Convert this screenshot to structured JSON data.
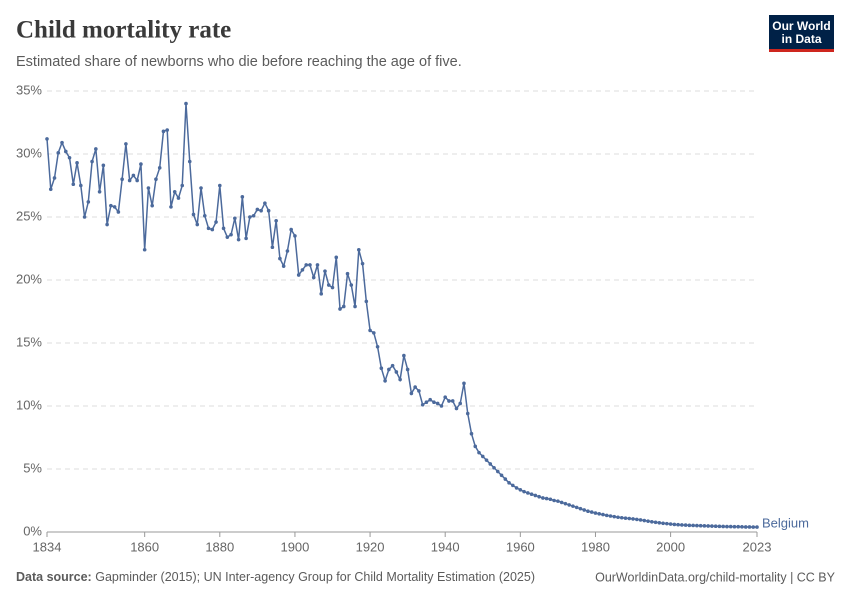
{
  "chart_data": {
    "type": "line",
    "title": "Child mortality rate",
    "subtitle": "Estimated share of newborns who die before reaching the age of five.",
    "logo": [
      "Our World",
      "in Data"
    ],
    "source_label": "Data source:",
    "source": "Gapminder (2015); UN Inter-agency Group for Child Mortality Estimation (2025)",
    "footer_right": "OurWorldinData.org/child-mortality | CC BY",
    "x": [
      1834,
      1835,
      1836,
      1837,
      1838,
      1839,
      1840,
      1841,
      1842,
      1843,
      1844,
      1845,
      1846,
      1847,
      1848,
      1849,
      1850,
      1851,
      1852,
      1853,
      1854,
      1855,
      1856,
      1857,
      1858,
      1859,
      1860,
      1861,
      1862,
      1863,
      1864,
      1865,
      1866,
      1867,
      1868,
      1869,
      1870,
      1871,
      1872,
      1873,
      1874,
      1875,
      1876,
      1877,
      1878,
      1879,
      1880,
      1881,
      1882,
      1883,
      1884,
      1885,
      1886,
      1887,
      1888,
      1889,
      1890,
      1891,
      1892,
      1893,
      1894,
      1895,
      1896,
      1897,
      1898,
      1899,
      1900,
      1901,
      1902,
      1903,
      1904,
      1905,
      1906,
      1907,
      1908,
      1909,
      1910,
      1911,
      1912,
      1913,
      1914,
      1915,
      1916,
      1917,
      1918,
      1919,
      1920,
      1921,
      1922,
      1923,
      1924,
      1925,
      1926,
      1927,
      1928,
      1929,
      1930,
      1931,
      1932,
      1933,
      1934,
      1935,
      1936,
      1937,
      1938,
      1939,
      1940,
      1941,
      1942,
      1943,
      1944,
      1945,
      1946,
      1947,
      1948,
      1949,
      1950,
      1951,
      1952,
      1953,
      1954,
      1955,
      1956,
      1957,
      1958,
      1959,
      1960,
      1961,
      1962,
      1963,
      1964,
      1965,
      1966,
      1967,
      1968,
      1969,
      1970,
      1971,
      1972,
      1973,
      1974,
      1975,
      1976,
      1977,
      1978,
      1979,
      1980,
      1981,
      1982,
      1983,
      1984,
      1985,
      1986,
      1987,
      1988,
      1989,
      1990,
      1991,
      1992,
      1993,
      1994,
      1995,
      1996,
      1997,
      1998,
      1999,
      2000,
      2001,
      2002,
      2003,
      2004,
      2005,
      2006,
      2007,
      2008,
      2009,
      2010,
      2011,
      2012,
      2013,
      2014,
      2015,
      2016,
      2017,
      2018,
      2019,
      2020,
      2021,
      2022,
      2023
    ],
    "series": [
      {
        "name": "Belgium",
        "color": "#4c6a9c",
        "values": [
          31.2,
          27.2,
          28.1,
          30.1,
          30.9,
          30.2,
          29.7,
          27.6,
          29.3,
          27.5,
          25.0,
          26.2,
          29.4,
          30.4,
          27.0,
          29.1,
          24.4,
          25.9,
          25.8,
          25.4,
          28.0,
          30.8,
          27.9,
          28.3,
          27.9,
          29.2,
          22.4,
          27.3,
          25.9,
          28.0,
          28.9,
          31.8,
          31.9,
          25.8,
          27.0,
          26.5,
          27.5,
          34.0,
          29.4,
          25.2,
          24.4,
          27.3,
          25.1,
          24.1,
          24.0,
          24.6,
          27.5,
          24.1,
          23.4,
          23.6,
          24.9,
          23.2,
          26.6,
          23.3,
          25.0,
          25.1,
          25.6,
          25.5,
          26.1,
          25.5,
          22.6,
          24.7,
          21.7,
          21.1,
          22.3,
          24.0,
          23.5,
          20.4,
          20.8,
          21.2,
          21.2,
          20.2,
          21.2,
          18.9,
          20.7,
          19.6,
          19.4,
          21.8,
          17.7,
          17.9,
          20.5,
          19.6,
          17.9,
          22.4,
          21.3,
          18.3,
          16.0,
          15.8,
          14.7,
          13.0,
          12.0,
          12.9,
          13.2,
          12.7,
          12.1,
          14.0,
          12.9,
          11.0,
          11.5,
          11.2,
          10.1,
          10.3,
          10.5,
          10.3,
          10.2,
          10.0,
          10.7,
          10.4,
          10.4,
          9.8,
          10.2,
          11.8,
          9.4,
          7.8,
          6.8,
          6.3,
          6.0,
          5.7,
          5.4,
          5.1,
          4.8,
          4.5,
          4.2,
          3.9,
          3.7,
          3.5,
          3.35,
          3.2,
          3.1,
          3.0,
          2.9,
          2.8,
          2.7,
          2.65,
          2.6,
          2.5,
          2.45,
          2.35,
          2.25,
          2.15,
          2.05,
          1.95,
          1.85,
          1.75,
          1.65,
          1.58,
          1.5,
          1.44,
          1.38,
          1.32,
          1.27,
          1.22,
          1.17,
          1.13,
          1.1,
          1.07,
          1.04,
          1.0,
          0.96,
          0.91,
          0.86,
          0.81,
          0.77,
          0.73,
          0.69,
          0.66,
          0.63,
          0.6,
          0.58,
          0.56,
          0.55,
          0.53,
          0.52,
          0.51,
          0.5,
          0.49,
          0.48,
          0.47,
          0.46,
          0.45,
          0.44,
          0.43,
          0.43,
          0.42,
          0.42,
          0.41,
          0.4,
          0.4,
          0.39,
          0.39
        ]
      }
    ],
    "xlim": [
      1834,
      2023
    ],
    "xticks": [
      1834,
      1860,
      1880,
      1900,
      1920,
      1940,
      1960,
      1980,
      2000,
      2023
    ],
    "ylim": [
      0,
      35
    ],
    "yticks": [
      {
        "value": 0,
        "label": "0%"
      },
      {
        "value": 5,
        "label": "5%"
      },
      {
        "value": 10,
        "label": "10%"
      },
      {
        "value": 15,
        "label": "15%"
      },
      {
        "value": 20,
        "label": "20%"
      },
      {
        "value": 25,
        "label": "25%"
      },
      {
        "value": 30,
        "label": "30%"
      },
      {
        "value": 35,
        "label": "35%"
      }
    ],
    "grid": true
  }
}
